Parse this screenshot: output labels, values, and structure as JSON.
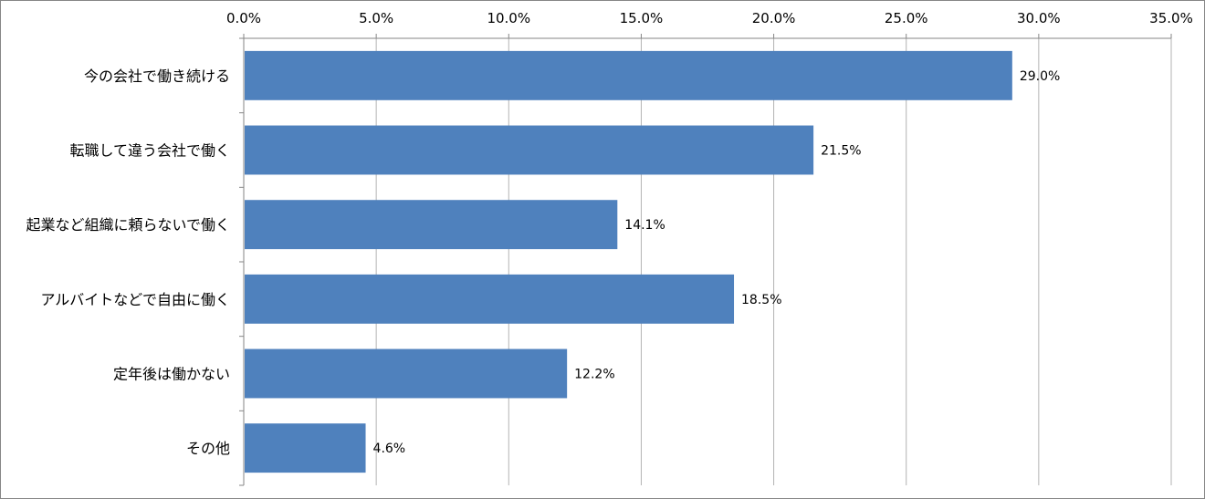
{
  "chart_data": {
    "type": "bar",
    "orientation": "horizontal",
    "title": "",
    "xlabel": "",
    "ylabel": "",
    "xlim": [
      0,
      35
    ],
    "x_ticks": [
      "0.0%",
      "5.0%",
      "10.0%",
      "15.0%",
      "20.0%",
      "25.0%",
      "30.0%",
      "35.0%"
    ],
    "x_axis_position": "top",
    "grid": true,
    "legend": "none",
    "categories": [
      "今の会社で働き続ける",
      "転職して違う会社で働く",
      "起業など組織に頼らないで働く",
      "アルバイトなどで自由に働く",
      "定年後は働かない",
      "その他"
    ],
    "values": [
      29.0,
      21.5,
      14.1,
      18.5,
      12.2,
      4.6
    ],
    "data_labels": [
      "29.0%",
      "21.5%",
      "14.1%",
      "18.5%",
      "12.2%",
      "4.6%"
    ],
    "bar_color": "#4f81bd",
    "grid_color": "#b3b3b3",
    "axis_color": "#868686"
  }
}
